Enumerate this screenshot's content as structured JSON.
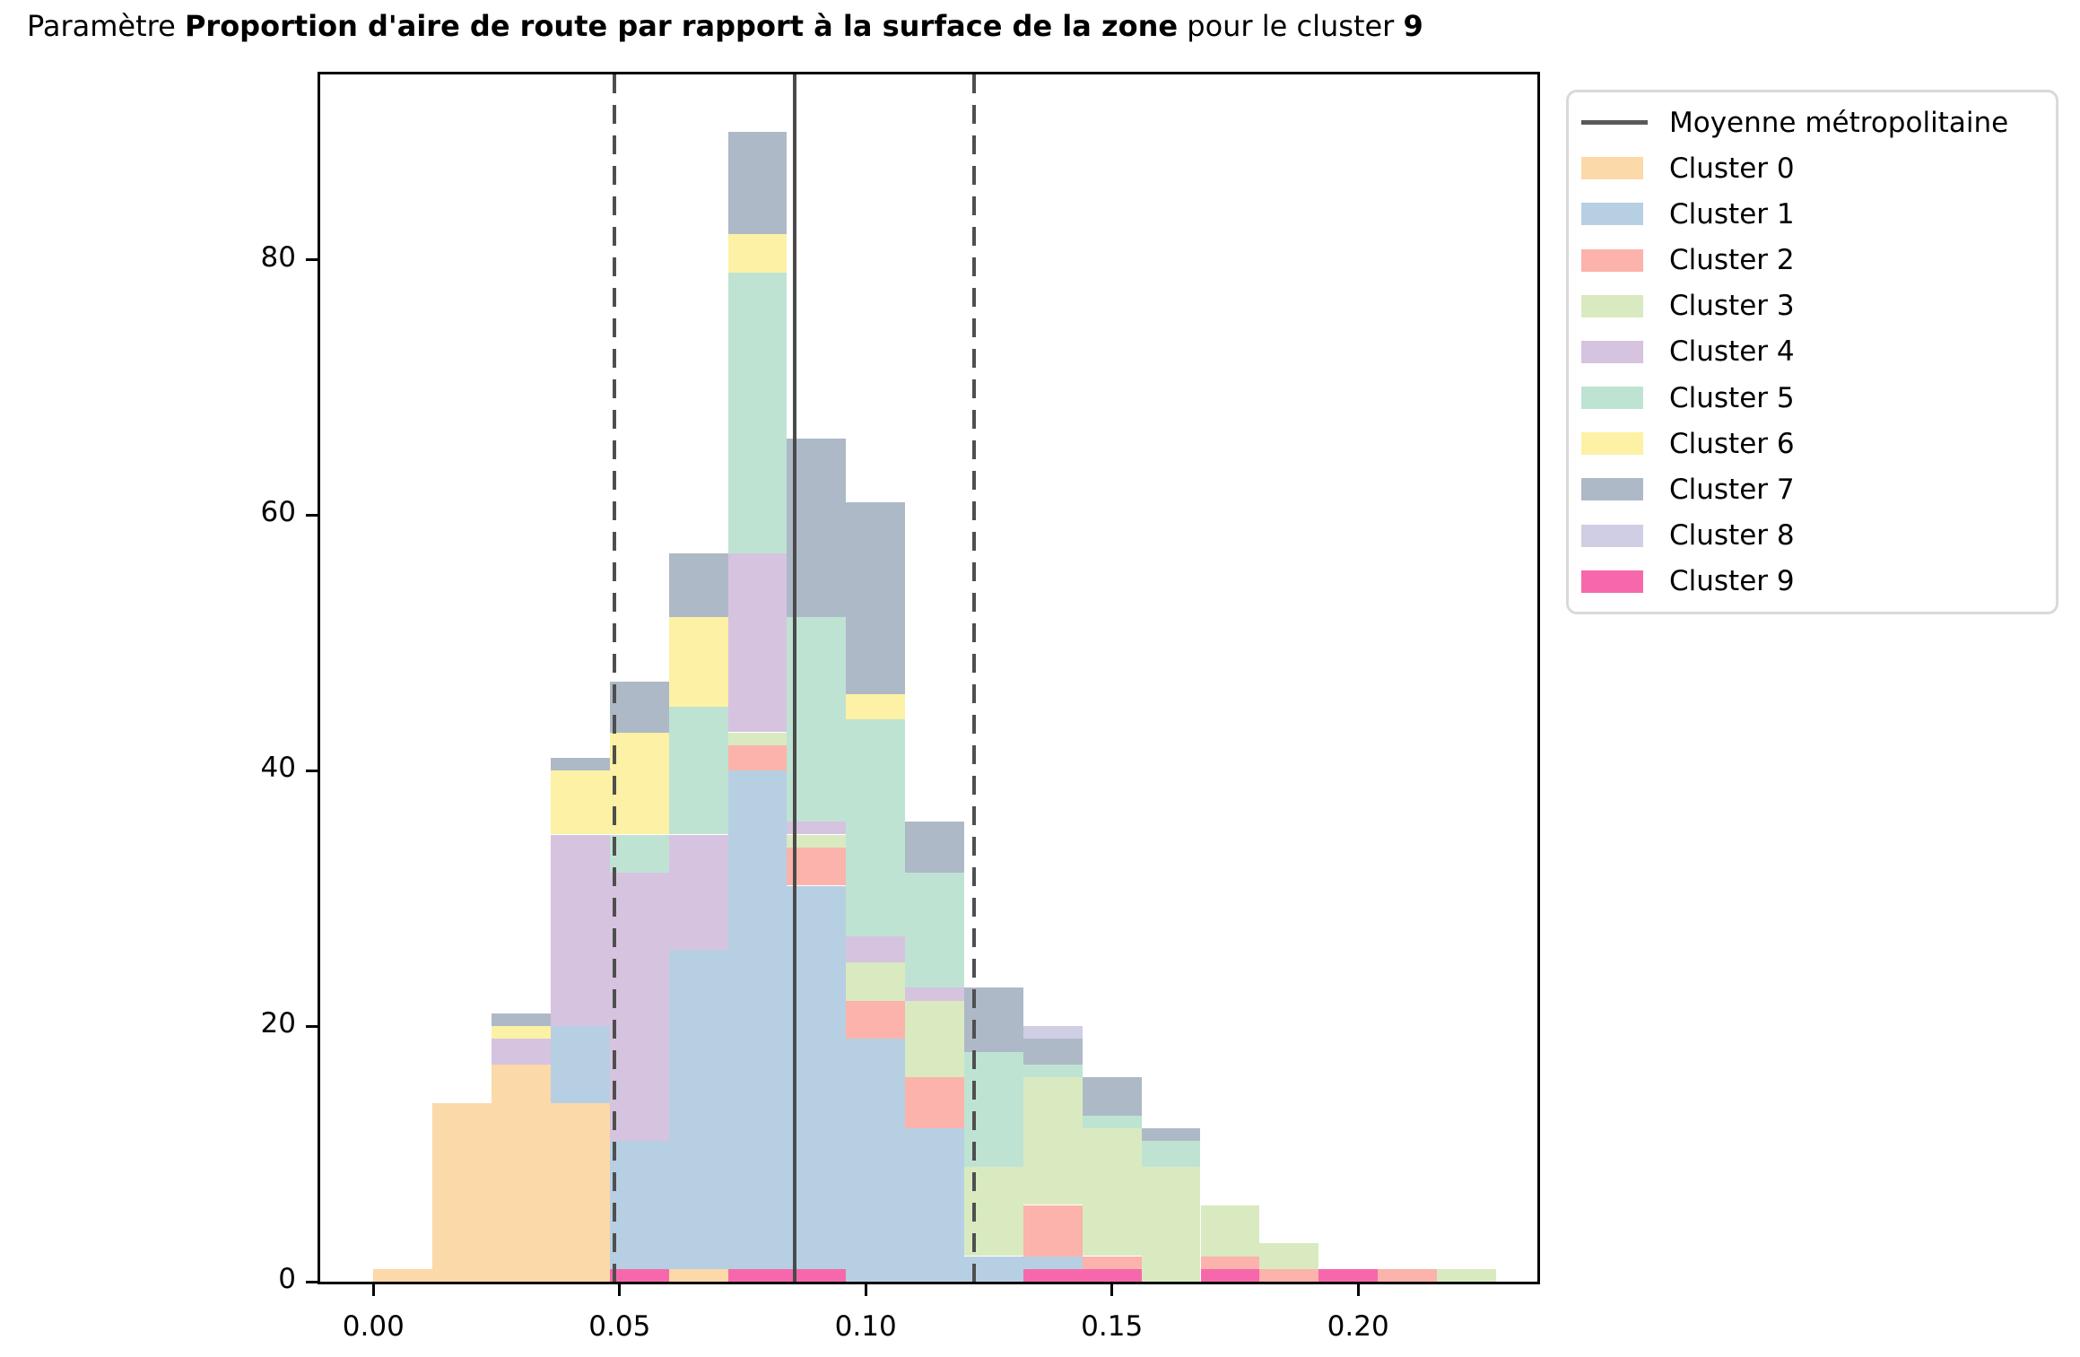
{
  "title": {
    "segments": [
      {
        "text": "Paramètre ",
        "bold": false
      },
      {
        "text": "Proportion d'aire de route par rapport à la surface de la zone",
        "bold": true
      },
      {
        "text": " pour le cluster ",
        "bold": false
      },
      {
        "text": "9",
        "bold": true
      }
    ]
  },
  "legend": {
    "mean_label": "Moyenne métropolitaine",
    "mean_color": "#595959",
    "entries": [
      {
        "label": "Cluster 0",
        "color": "#fbd9a9"
      },
      {
        "label": "Cluster 1",
        "color": "#b7cfe3"
      },
      {
        "label": "Cluster 2",
        "color": "#fbb3ab"
      },
      {
        "label": "Cluster 3",
        "color": "#d9eac1"
      },
      {
        "label": "Cluster 4",
        "color": "#d6c3df"
      },
      {
        "label": "Cluster 5",
        "color": "#bfe3d3"
      },
      {
        "label": "Cluster 6",
        "color": "#fcf1a4"
      },
      {
        "label": "Cluster 7",
        "color": "#aeb9c7"
      },
      {
        "label": "Cluster 8",
        "color": "#cfcee4"
      },
      {
        "label": "Cluster 9",
        "color": "#f668ab"
      }
    ]
  },
  "chart_data": {
    "type": "bar",
    "subtype": "stacked-histogram",
    "title": "Paramètre Proportion d'aire de route par rapport à la surface de la zone pour le cluster 9",
    "xlabel": "",
    "ylabel": "",
    "grid": false,
    "legend_position": "outside-right",
    "xlim": [
      -0.0108,
      0.2364
    ],
    "ylim": [
      0,
      94.5
    ],
    "x_ticks": [
      {
        "value": 0.0,
        "label": "0.00"
      },
      {
        "value": 0.05,
        "label": "0.05"
      },
      {
        "value": 0.1,
        "label": "0.10"
      },
      {
        "value": 0.15,
        "label": "0.15"
      },
      {
        "value": 0.2,
        "label": "0.20"
      }
    ],
    "y_ticks": [
      {
        "value": 0,
        "label": "0"
      },
      {
        "value": 20,
        "label": "20"
      },
      {
        "value": 40,
        "label": "40"
      },
      {
        "value": 60,
        "label": "60"
      },
      {
        "value": 80,
        "label": "80"
      }
    ],
    "mean_line": 0.0855,
    "std_lines": [
      0.049,
      0.122
    ],
    "bin_width": 0.012,
    "stack_order_note": "segments listed bottom-to-top; cluster 9 plotted first, then clusters 0-8",
    "bins": [
      {
        "x0": 0.0,
        "segments": [
          [
            0,
            1
          ]
        ]
      },
      {
        "x0": 0.012,
        "segments": [
          [
            0,
            14
          ]
        ]
      },
      {
        "x0": 0.024,
        "segments": [
          [
            0,
            17
          ],
          [
            4,
            2
          ],
          [
            6,
            1
          ],
          [
            7,
            1
          ]
        ]
      },
      {
        "x0": 0.036,
        "segments": [
          [
            0,
            14
          ],
          [
            1,
            6
          ],
          [
            4,
            15
          ],
          [
            6,
            5
          ],
          [
            7,
            1
          ]
        ]
      },
      {
        "x0": 0.048,
        "segments": [
          [
            9,
            1
          ],
          [
            1,
            10
          ],
          [
            4,
            21
          ],
          [
            5,
            3
          ],
          [
            6,
            8
          ],
          [
            7,
            4
          ]
        ]
      },
      {
        "x0": 0.06,
        "segments": [
          [
            0,
            1
          ],
          [
            1,
            25
          ],
          [
            4,
            9
          ],
          [
            5,
            10
          ],
          [
            6,
            7
          ],
          [
            7,
            5
          ]
        ]
      },
      {
        "x0": 0.072,
        "segments": [
          [
            9,
            1
          ],
          [
            1,
            39
          ],
          [
            2,
            2
          ],
          [
            3,
            1
          ],
          [
            4,
            14
          ],
          [
            5,
            22
          ],
          [
            6,
            3
          ],
          [
            7,
            8
          ]
        ]
      },
      {
        "x0": 0.084,
        "segments": [
          [
            9,
            1
          ],
          [
            1,
            30
          ],
          [
            2,
            3
          ],
          [
            3,
            1
          ],
          [
            4,
            1
          ],
          [
            5,
            16
          ],
          [
            7,
            14
          ]
        ]
      },
      {
        "x0": 0.096,
        "segments": [
          [
            1,
            19
          ],
          [
            2,
            3
          ],
          [
            3,
            3
          ],
          [
            4,
            2
          ],
          [
            5,
            17
          ],
          [
            6,
            2
          ],
          [
            7,
            15
          ]
        ]
      },
      {
        "x0": 0.108,
        "segments": [
          [
            1,
            12
          ],
          [
            2,
            4
          ],
          [
            3,
            6
          ],
          [
            4,
            1
          ],
          [
            5,
            9
          ],
          [
            7,
            4
          ]
        ]
      },
      {
        "x0": 0.12,
        "segments": [
          [
            1,
            2
          ],
          [
            3,
            7
          ],
          [
            5,
            9
          ],
          [
            7,
            5
          ]
        ]
      },
      {
        "x0": 0.132,
        "segments": [
          [
            9,
            1
          ],
          [
            1,
            1
          ],
          [
            2,
            4
          ],
          [
            3,
            10
          ],
          [
            5,
            1
          ],
          [
            7,
            2
          ],
          [
            8,
            1
          ]
        ]
      },
      {
        "x0": 0.144,
        "segments": [
          [
            9,
            1
          ],
          [
            2,
            1
          ],
          [
            3,
            10
          ],
          [
            5,
            1
          ],
          [
            7,
            3
          ]
        ]
      },
      {
        "x0": 0.156,
        "segments": [
          [
            3,
            9
          ],
          [
            5,
            2
          ],
          [
            7,
            1
          ]
        ]
      },
      {
        "x0": 0.168,
        "segments": [
          [
            9,
            1
          ],
          [
            2,
            1
          ],
          [
            3,
            4
          ]
        ]
      },
      {
        "x0": 0.18,
        "segments": [
          [
            2,
            1
          ],
          [
            3,
            2
          ]
        ]
      },
      {
        "x0": 0.192,
        "segments": [
          [
            9,
            1
          ]
        ]
      },
      {
        "x0": 0.204,
        "segments": [
          [
            2,
            1
          ]
        ]
      },
      {
        "x0": 0.216,
        "segments": [
          [
            3,
            1
          ]
        ]
      }
    ]
  }
}
